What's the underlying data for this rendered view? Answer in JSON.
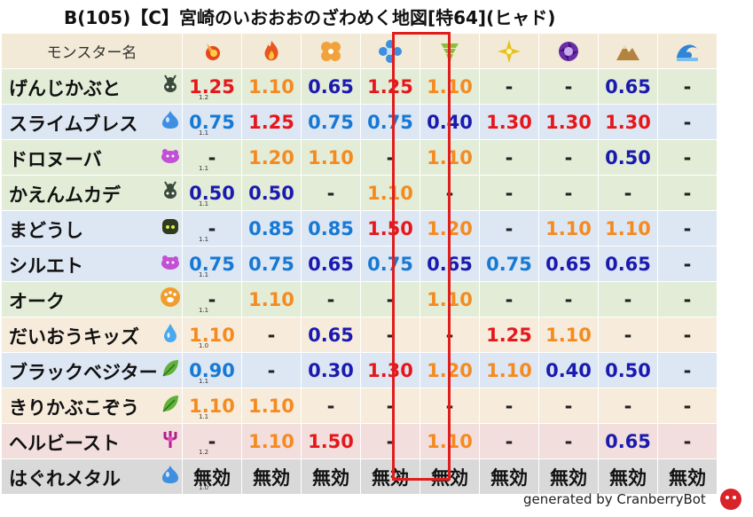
{
  "title": "B(105)【C】宮崎のいおおおのざわめく地図[特64](ヒャド)",
  "header": {
    "monster_col": "モンスター名",
    "elements": [
      {
        "name": "fire-icon",
        "color": "#e8451f"
      },
      {
        "name": "flame-icon",
        "color": "#e8551f"
      },
      {
        "name": "clover-icon",
        "color": "#f2a23a"
      },
      {
        "name": "ice-flower-icon",
        "color": "#3c8fe0"
      },
      {
        "name": "tornado-icon",
        "color": "#8bbf3a"
      },
      {
        "name": "star-burst-icon",
        "color": "#e6c21e"
      },
      {
        "name": "dark-swirl-icon",
        "color": "#6a2ca8"
      },
      {
        "name": "mountain-icon",
        "color": "#b4833f"
      },
      {
        "name": "wave-icon",
        "color": "#2f86d6"
      }
    ]
  },
  "rows": [
    {
      "name": "げんじかぶと",
      "level": "1.2",
      "icon": "beetle-icon",
      "bg": "#e2ecd6",
      "values": [
        "1.25",
        "1.10",
        "0.65",
        "1.25",
        "1.10",
        "-",
        "-",
        "0.65",
        "-"
      ],
      "classes": [
        "red",
        "orange",
        "navy",
        "red",
        "orange",
        "dash",
        "dash",
        "navy",
        "dash"
      ]
    },
    {
      "name": "スライムブレス",
      "level": "1.1",
      "icon": "slime-icon",
      "bg": "#dde6f3",
      "values": [
        "0.75",
        "1.25",
        "0.75",
        "0.75",
        "0.40",
        "1.30",
        "1.30",
        "1.30",
        "-"
      ],
      "classes": [
        "blue",
        "red",
        "blue",
        "blue",
        "navy",
        "red",
        "red",
        "red",
        "dash"
      ]
    },
    {
      "name": "ドロヌーバ",
      "level": "1.1",
      "icon": "mud-icon",
      "bg": "#e2ecd6",
      "values": [
        "-",
        "1.20",
        "1.10",
        "-",
        "1.10",
        "-",
        "-",
        "0.50",
        "-"
      ],
      "classes": [
        "dash",
        "orange",
        "orange",
        "dash",
        "orange",
        "dash",
        "dash",
        "navy",
        "dash"
      ]
    },
    {
      "name": "かえんムカデ",
      "level": "1.1",
      "icon": "beetle-icon",
      "bg": "#e2ecd6",
      "values": [
        "0.50",
        "0.50",
        "-",
        "1.10",
        "-",
        "-",
        "-",
        "-",
        "-"
      ],
      "classes": [
        "navy",
        "navy",
        "dash",
        "orange",
        "dash",
        "dash",
        "dash",
        "dash",
        "dash"
      ]
    },
    {
      "name": "まどうし",
      "level": "1.1",
      "icon": "mage-icon",
      "bg": "#dde6f3",
      "values": [
        "-",
        "0.85",
        "0.85",
        "1.50",
        "1.20",
        "-",
        "1.10",
        "1.10",
        "-"
      ],
      "classes": [
        "dash",
        "blue",
        "blue",
        "red",
        "orange",
        "dash",
        "orange",
        "orange",
        "dash"
      ]
    },
    {
      "name": "シルエト",
      "level": "1.1",
      "icon": "mud-icon",
      "bg": "#dde6f3",
      "values": [
        "0.75",
        "0.75",
        "0.65",
        "0.75",
        "0.65",
        "0.75",
        "0.65",
        "0.65",
        "-"
      ],
      "classes": [
        "blue",
        "blue",
        "navy",
        "blue",
        "navy",
        "blue",
        "navy",
        "navy",
        "dash"
      ]
    },
    {
      "name": "オーク",
      "level": "1.1",
      "icon": "paw-icon",
      "bg": "#e2ecd6",
      "values": [
        "-",
        "1.10",
        "-",
        "-",
        "1.10",
        "-",
        "-",
        "-",
        "-"
      ],
      "classes": [
        "dash",
        "orange",
        "dash",
        "dash",
        "orange",
        "dash",
        "dash",
        "dash",
        "dash"
      ]
    },
    {
      "name": "だいおうキッズ",
      "level": "1.0",
      "icon": "drop-icon",
      "bg": "#f7ecdc",
      "values": [
        "1.10",
        "-",
        "0.65",
        "-",
        "-",
        "1.25",
        "1.10",
        "-",
        "-"
      ],
      "classes": [
        "orange",
        "dash",
        "navy",
        "dash",
        "dash",
        "red",
        "orange",
        "dash",
        "dash"
      ]
    },
    {
      "name": "ブラックベジター",
      "level": "1.1",
      "icon": "leaf-icon",
      "bg": "#dde6f3",
      "values": [
        "0.90",
        "-",
        "0.30",
        "1.30",
        "1.20",
        "1.10",
        "0.40",
        "0.50",
        "-"
      ],
      "classes": [
        "blue",
        "dash",
        "navy",
        "red",
        "orange",
        "orange",
        "navy",
        "navy",
        "dash"
      ]
    },
    {
      "name": "きりかぶこぞう",
      "level": "1.1",
      "icon": "leaf-icon",
      "bg": "#f7ecdc",
      "values": [
        "1.10",
        "1.10",
        "-",
        "-",
        "-",
        "-",
        "-",
        "-",
        "-"
      ],
      "classes": [
        "orange",
        "orange",
        "dash",
        "dash",
        "dash",
        "dash",
        "dash",
        "dash",
        "dash"
      ]
    },
    {
      "name": "ヘルビースト",
      "level": "1.2",
      "icon": "trident-icon",
      "bg": "#f3dede",
      "values": [
        "-",
        "1.10",
        "1.50",
        "-",
        "1.10",
        "-",
        "-",
        "0.65",
        "-"
      ],
      "classes": [
        "dash",
        "orange",
        "red",
        "dash",
        "orange",
        "dash",
        "dash",
        "navy",
        "dash"
      ]
    },
    {
      "name": "はぐれメタル",
      "level": "1.0",
      "icon": "slime-icon",
      "bg": "#d9d9d9",
      "values": [
        "無効",
        "無効",
        "無効",
        "無効",
        "無効",
        "無効",
        "無効",
        "無効",
        "無効"
      ],
      "classes": [
        "null",
        "null",
        "null",
        "null",
        "null",
        "null",
        "null",
        "null",
        "null"
      ]
    }
  ],
  "highlight_column": 3,
  "footer": "generated by CranberryBot"
}
